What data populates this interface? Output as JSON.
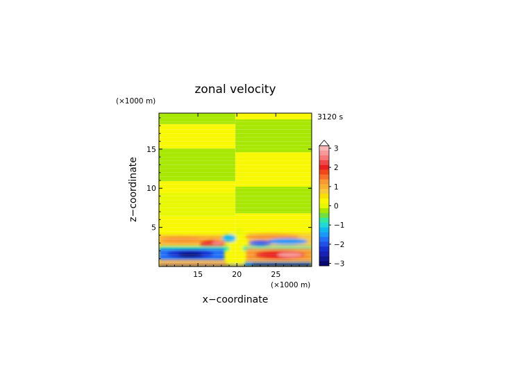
{
  "chart_data": {
    "type": "heatmap",
    "title": "zonal velocity",
    "time_label": "3120 s",
    "xlabel": "x−coordinate",
    "ylabel": "z−coordinate",
    "x_unit": "(×1000 m)",
    "y_unit": "(×1000 m)",
    "xlim": [
      10,
      29.6
    ],
    "ylim": [
      0,
      19.6
    ],
    "x_ticks": [
      15,
      20,
      25
    ],
    "y_ticks": [
      5,
      10,
      15
    ],
    "colorbar": {
      "ticks": [
        3,
        2,
        1,
        0,
        -1,
        -2,
        -3
      ],
      "levels": [
        {
          "lo": 3.0,
          "color": "#f8b8b8"
        },
        {
          "lo": 2.75,
          "color": "#f89898"
        },
        {
          "lo": 2.5,
          "color": "#f87878"
        },
        {
          "lo": 2.25,
          "color": "#f04848"
        },
        {
          "lo": 2.0,
          "color": "#e82020"
        },
        {
          "lo": 1.75,
          "color": "#f04818"
        },
        {
          "lo": 1.5,
          "color": "#f87028"
        },
        {
          "lo": 1.25,
          "color": "#f89830"
        },
        {
          "lo": 1.0,
          "color": "#f8b030"
        },
        {
          "lo": 0.75,
          "color": "#f8c838"
        },
        {
          "lo": 0.5,
          "color": "#f8e000"
        },
        {
          "lo": 0.25,
          "color": "#f8f800"
        },
        {
          "lo": 0.0,
          "color": "#e8f800"
        },
        {
          "lo": -0.25,
          "color": "#a8e800"
        },
        {
          "lo": -0.5,
          "color": "#70e040"
        },
        {
          "lo": -0.75,
          "color": "#30e8a0"
        },
        {
          "lo": -1.0,
          "color": "#20d8d8"
        },
        {
          "lo": -1.25,
          "color": "#10b8f0"
        },
        {
          "lo": -1.5,
          "color": "#1898f8"
        },
        {
          "lo": -1.75,
          "color": "#2070f8"
        },
        {
          "lo": -2.0,
          "color": "#2050e8"
        },
        {
          "lo": -2.25,
          "color": "#1830d0"
        },
        {
          "lo": -2.5,
          "color": "#1820b8"
        },
        {
          "lo": -2.75,
          "color": "#101890"
        },
        {
          "lo": -3.0,
          "color": "#080870"
        }
      ]
    }
  }
}
